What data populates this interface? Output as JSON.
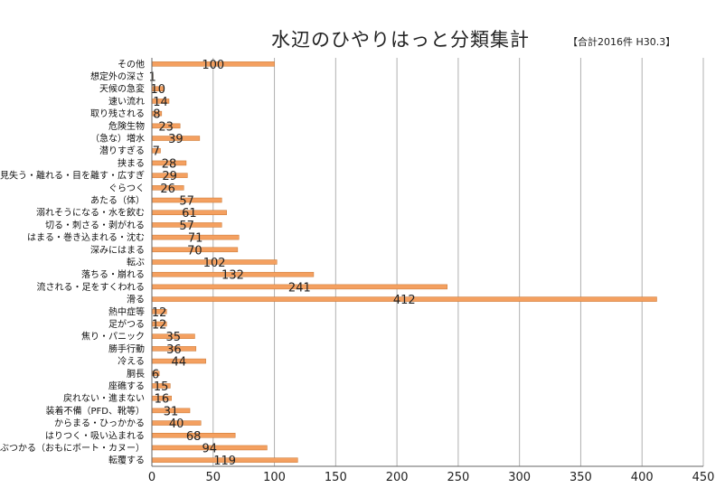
{
  "chart_data": {
    "type": "bar",
    "orientation": "horizontal",
    "title": "水辺のひやりはっと分類集計",
    "subtitle": "【合計2016件 H30.3】",
    "categories": [
      "その他",
      "想定外の深さ",
      "天候の急変",
      "速い流れ",
      "取り残される",
      "危険生物",
      "（急な）増水",
      "潜りすぎる",
      "挟まる",
      "見失う・離れる・目を離す・広すぎ",
      "ぐらつく",
      "あたる（体）",
      "溺れそうになる・水を飲む",
      "切る・刺さる・剥がれる",
      "はまる・巻き込まれる・沈む",
      "深みにはまる",
      "転ぶ",
      "落ちる・崩れる",
      "流される・足をすくわれる",
      "滑る",
      "熱中症等",
      "足がつる",
      "焦り・パニック",
      "勝手行動",
      "冷える",
      "胴長",
      "座礁する",
      "戻れない・進まない",
      "装着不備（PFD、靴等）",
      "からまる・ひっかかる",
      "はりつく・吸い込まれる",
      "ぶつかる（おもにボート・カヌー）",
      "転覆する"
    ],
    "values": [
      100,
      1,
      10,
      14,
      8,
      23,
      39,
      7,
      28,
      29,
      26,
      57,
      61,
      57,
      71,
      70,
      102,
      132,
      241,
      412,
      12,
      12,
      35,
      36,
      44,
      6,
      15,
      16,
      31,
      40,
      68,
      94,
      119
    ],
    "xlim": [
      0,
      450
    ],
    "xticks": [
      0,
      50,
      100,
      150,
      200,
      250,
      300,
      350,
      400,
      450
    ],
    "grid": "vertical",
    "bar_color": "#f4a060",
    "bar_edge_color": "#c8742f",
    "grid_color": "#b0b0b0"
  }
}
